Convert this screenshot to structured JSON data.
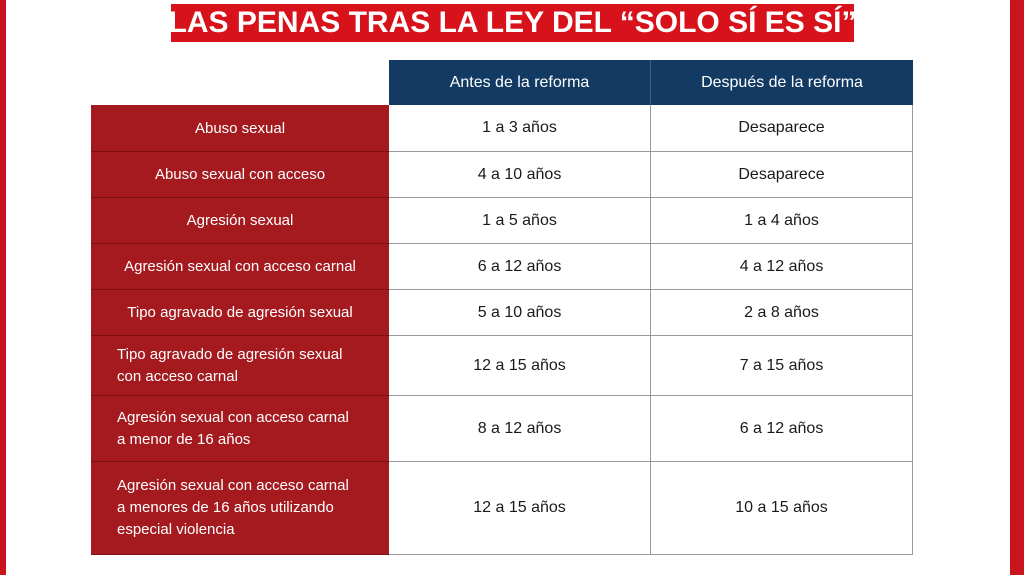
{
  "title": "LAS PENAS TRAS LA LEY DEL “SOLO SÍ ES SÍ”",
  "colors": {
    "brand_red": "#d7121b",
    "row_label_red": "#a41a1f",
    "header_navy": "#123a62"
  },
  "table": {
    "headers": {
      "before": "Antes de la reforma",
      "after": "Después de la reforma"
    },
    "rows": [
      {
        "label": "Abuso sexual",
        "before": "1 a 3 años",
        "after": "Desaparece"
      },
      {
        "label": "Abuso sexual con acceso",
        "before": "4 a 10 años",
        "after": "Desaparece"
      },
      {
        "label": "Agresión sexual",
        "before": "1 a 5 años",
        "after": "1 a 4 años"
      },
      {
        "label": "Agresión sexual con acceso carnal",
        "before": "6 a 12 años",
        "after": "4 a 12 años"
      },
      {
        "label": "Tipo agravado de agresión sexual",
        "before": "5 a 10 años",
        "after": "2 a 8 años"
      },
      {
        "label_lines": [
          "Tipo agravado de agresión sexual",
          "con acceso carnal"
        ],
        "before": "12 a 15 años",
        "after": "7 a 15 años"
      },
      {
        "label_lines": [
          "Agresión sexual con acceso carnal",
          "a menor de 16 años"
        ],
        "before": "8 a 12 años",
        "after": "6 a 12 años"
      },
      {
        "label_lines": [
          "Agresión sexual con acceso carnal",
          "a menores de 16 años utilizando",
          "especial violencia"
        ],
        "before": "12 a 15 años",
        "after": "10 a 15 años"
      }
    ]
  }
}
